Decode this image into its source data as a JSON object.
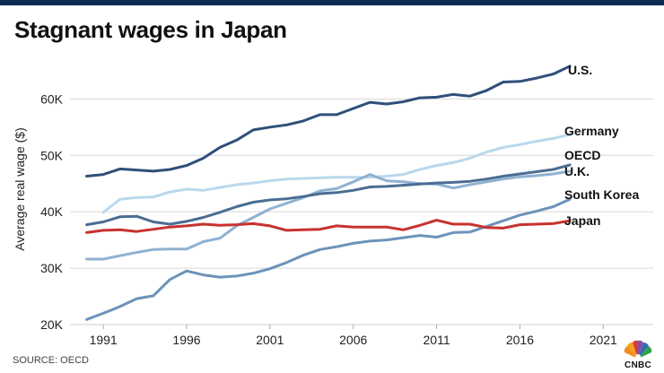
{
  "title": "Stagnant wages in Japan",
  "source": "SOURCE: OECD",
  "logo": {
    "text": "CNBC",
    "icon": "nbc-peacock-icon"
  },
  "chart_data": {
    "type": "line",
    "title": "Stagnant wages in Japan",
    "xlabel": "",
    "ylabel": "Average real wage ($)",
    "xlim": [
      1989,
      2024
    ],
    "ylim": [
      20000,
      68000
    ],
    "xticks": [
      1991,
      1996,
      2001,
      2006,
      2011,
      2016,
      2021
    ],
    "xtick_labels": [
      "1991",
      "1996",
      "2001",
      "2006",
      "2011",
      "2016",
      "2021"
    ],
    "yticks": [
      20000,
      30000,
      40000,
      50000,
      60000
    ],
    "ytick_labels": [
      "20K",
      "30K",
      "40K",
      "50K",
      "60K"
    ],
    "grid": "horizontal",
    "series": [
      {
        "name": "U.S.",
        "label": "U.S.",
        "color": "#2f4f7a",
        "x": [
          1990,
          1991,
          1992,
          1993,
          1994,
          1995,
          1996,
          1997,
          1998,
          1999,
          2000,
          2001,
          2002,
          2003,
          2004,
          2005,
          2006,
          2007,
          2008,
          2009,
          2010,
          2011,
          2012,
          2013,
          2014,
          2015,
          2016,
          2017,
          2018,
          2019
        ],
        "values": [
          46300,
          46600,
          47600,
          47400,
          47200,
          47500,
          48200,
          49500,
          51400,
          52700,
          54500,
          55000,
          55400,
          56100,
          57200,
          57200,
          58300,
          59400,
          59100,
          59500,
          60200,
          60300,
          60800,
          60500,
          61500,
          63000,
          63100,
          63700,
          64400,
          65800
        ]
      },
      {
        "name": "Germany",
        "label": "Germany",
        "color": "#b9d8ec",
        "x": [
          1991,
          1992,
          1993,
          1994,
          1995,
          1996,
          1997,
          1998,
          1999,
          2000,
          2001,
          2002,
          2003,
          2004,
          2005,
          2006,
          2007,
          2008,
          2009,
          2010,
          2011,
          2012,
          2013,
          2014,
          2015,
          2016,
          2017,
          2018,
          2019
        ],
        "values": [
          39900,
          42200,
          42500,
          42600,
          43500,
          44000,
          43800,
          44300,
          44800,
          45100,
          45500,
          45800,
          45900,
          46000,
          46100,
          46100,
          46100,
          46300,
          46600,
          47500,
          48200,
          48700,
          49500,
          50600,
          51400,
          51900,
          52500,
          53000,
          53700
        ]
      },
      {
        "name": "OECD",
        "label": "OECD",
        "color": "#4a6d93",
        "x": [
          1990,
          1991,
          1992,
          1993,
          1994,
          1995,
          1996,
          1997,
          1998,
          1999,
          2000,
          2001,
          2002,
          2003,
          2004,
          2005,
          2006,
          2007,
          2008,
          2009,
          2010,
          2011,
          2012,
          2013,
          2014,
          2015,
          2016,
          2017,
          2018,
          2019
        ],
        "values": [
          37700,
          38200,
          39100,
          39200,
          38200,
          37800,
          38300,
          39000,
          39900,
          40900,
          41700,
          42100,
          42300,
          42700,
          43200,
          43400,
          43800,
          44400,
          44500,
          44700,
          44900,
          45100,
          45200,
          45400,
          45800,
          46300,
          46700,
          47100,
          47500,
          48300
        ]
      },
      {
        "name": "U.K.",
        "label": "U.K.",
        "color": "#8fb2d2",
        "x": [
          1990,
          1991,
          1992,
          1993,
          1994,
          1995,
          1996,
          1997,
          1998,
          1999,
          2000,
          2001,
          2002,
          2003,
          2004,
          2005,
          2006,
          2007,
          2008,
          2009,
          2010,
          2011,
          2012,
          2013,
          2014,
          2015,
          2016,
          2017,
          2018,
          2019
        ],
        "values": [
          31600,
          31600,
          32200,
          32800,
          33300,
          33400,
          33400,
          34700,
          35300,
          37500,
          39000,
          40500,
          41500,
          42500,
          43700,
          44100,
          45300,
          46600,
          45500,
          45300,
          45000,
          44900,
          44200,
          44800,
          45300,
          45800,
          46200,
          46400,
          46700,
          47200
        ]
      },
      {
        "name": "South Korea",
        "label": "South Korea",
        "color": "#6c93ba",
        "x": [
          1990,
          1991,
          1992,
          1993,
          1994,
          1995,
          1996,
          1997,
          1998,
          1999,
          2000,
          2001,
          2002,
          2003,
          2004,
          2005,
          2006,
          2007,
          2008,
          2009,
          2010,
          2011,
          2012,
          2013,
          2014,
          2015,
          2016,
          2017,
          2018,
          2019
        ],
        "values": [
          20900,
          22000,
          23200,
          24600,
          25100,
          28000,
          29500,
          28800,
          28400,
          28600,
          29100,
          29900,
          31000,
          32300,
          33300,
          33800,
          34400,
          34800,
          35000,
          35400,
          35800,
          35500,
          36300,
          36400,
          37400,
          38400,
          39400,
          40100,
          40900,
          42200
        ]
      },
      {
        "name": "Japan",
        "label": "Japan",
        "color": "#c8322f",
        "x": [
          1990,
          1991,
          1992,
          1993,
          1994,
          1995,
          1996,
          1997,
          1998,
          1999,
          2000,
          2001,
          2002,
          2003,
          2004,
          2005,
          2006,
          2007,
          2008,
          2009,
          2010,
          2011,
          2012,
          2013,
          2014,
          2015,
          2016,
          2017,
          2018,
          2019
        ],
        "values": [
          36300,
          36700,
          36800,
          36500,
          36900,
          37300,
          37500,
          37800,
          37600,
          37700,
          37900,
          37500,
          36700,
          36800,
          36900,
          37500,
          37300,
          37300,
          37300,
          36800,
          37600,
          38500,
          37800,
          37800,
          37200,
          37100,
          37700,
          37800,
          37900,
          38400
        ]
      }
    ]
  }
}
